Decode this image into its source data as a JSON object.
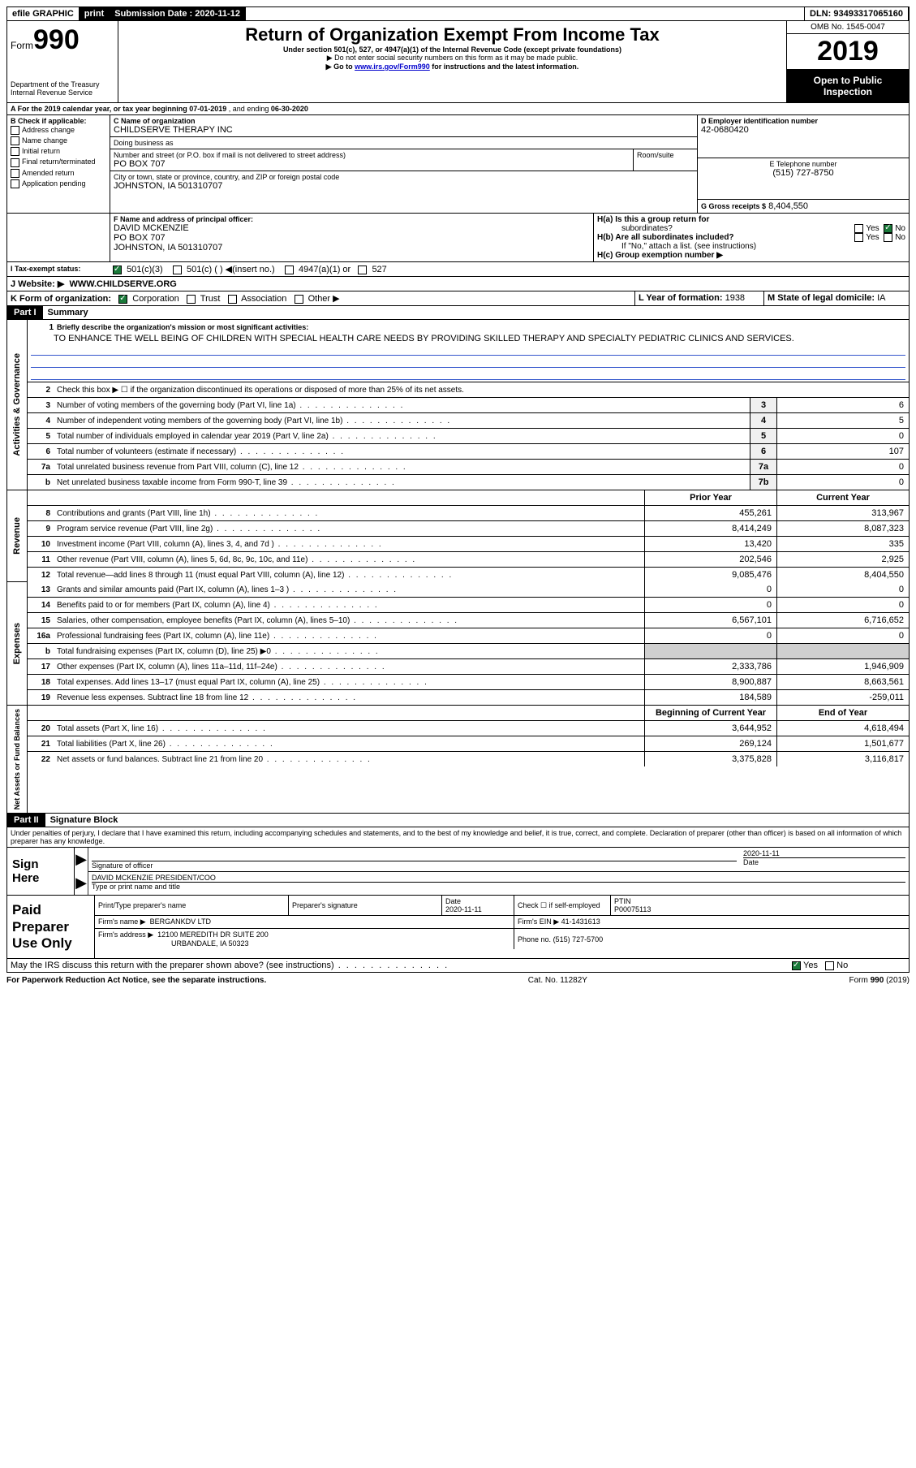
{
  "topbar": {
    "efile": "efile GRAPHIC",
    "print": "print",
    "sub_label": "Submission Date :",
    "sub_date": "2020-11-12",
    "dln_label": "DLN:",
    "dln": "93493317065160"
  },
  "header": {
    "form_word": "Form",
    "form_num": "990",
    "dept": "Department of the Treasury",
    "irs": "Internal Revenue Service",
    "title": "Return of Organization Exempt From Income Tax",
    "subtitle": "Under section 501(c), 527, or 4947(a)(1) of the Internal Revenue Code (except private foundations)",
    "note1": "Do not enter social security numbers on this form as it may be made public.",
    "note2_pre": "Go to ",
    "note2_link": "www.irs.gov/Form990",
    "note2_post": " for instructions and the latest information.",
    "omb": "OMB No. 1545-0047",
    "year": "2019",
    "open": "Open to Public Inspection"
  },
  "periodA": {
    "pre": "A For the 2019 calendar year, or tax year beginning ",
    "begin": "07-01-2019",
    "mid": " , and ending ",
    "end": "06-30-2020"
  },
  "boxB": {
    "title": "B Check if applicable:",
    "items": [
      "Address change",
      "Name change",
      "Initial return",
      "Final return/terminated",
      "Amended return",
      "Application pending"
    ]
  },
  "boxC": {
    "label": "C Name of organization",
    "org": "CHILDSERVE THERAPY INC",
    "dba_label": "Doing business as",
    "dba": "",
    "addr_label": "Number and street (or P.O. box if mail is not delivered to street address)",
    "room_label": "Room/suite",
    "addr": "PO BOX 707",
    "city_label": "City or town, state or province, country, and ZIP or foreign postal code",
    "city": "JOHNSTON, IA  501310707"
  },
  "boxD": {
    "label": "D Employer identification number",
    "ein": "42-0680420"
  },
  "boxE": {
    "label": "E Telephone number",
    "phone": "(515) 727-8750"
  },
  "boxG": {
    "label": "G Gross receipts $",
    "val": "8,404,550"
  },
  "boxF": {
    "label": "F Name and address of principal officer:",
    "name": "DAVID MCKENZIE",
    "addr": "PO BOX 707",
    "city": "JOHNSTON, IA  501310707"
  },
  "boxH": {
    "a": "H(a)  Is this a group return for",
    "a2": "subordinates?",
    "b": "H(b)  Are all subordinates included?",
    "b2": "If \"No,\" attach a list. (see instructions)",
    "c": "H(c)  Group exemption number ▶",
    "yes": "Yes",
    "no": "No"
  },
  "boxI": {
    "label": "I   Tax-exempt status:",
    "o1": "501(c)(3)",
    "o2": "501(c) (   ) ◀(insert no.)",
    "o3": "4947(a)(1) or",
    "o4": "527"
  },
  "boxJ": {
    "label": "J   Website: ▶",
    "val": "WWW.CHILDSERVE.ORG"
  },
  "boxK": {
    "label": "K Form of organization:",
    "o1": "Corporation",
    "o2": "Trust",
    "o3": "Association",
    "o4": "Other ▶"
  },
  "boxL": {
    "label": "L Year of formation:",
    "val": "1938"
  },
  "boxM": {
    "label": "M State of legal domicile:",
    "val": "IA"
  },
  "part1": {
    "num": "Part I",
    "title": "Summary"
  },
  "summary": {
    "l1_label": "Briefly describe the organization's mission or most significant activities:",
    "l1_text": "TO ENHANCE THE WELL BEING OF CHILDREN WITH SPECIAL HEALTH CARE NEEDS BY PROVIDING SKILLED THERAPY AND SPECIALTY PEDIATRIC CLINICS AND SERVICES.",
    "l2": "Check this box ▶ ☐  if the organization discontinued its operations or disposed of more than 25% of its net assets.",
    "gov_lines": [
      {
        "n": "3",
        "t": "Number of voting members of the governing body (Part VI, line 1a)",
        "b": "3",
        "v": "6"
      },
      {
        "n": "4",
        "t": "Number of independent voting members of the governing body (Part VI, line 1b)",
        "b": "4",
        "v": "5"
      },
      {
        "n": "5",
        "t": "Total number of individuals employed in calendar year 2019 (Part V, line 2a)",
        "b": "5",
        "v": "0"
      },
      {
        "n": "6",
        "t": "Total number of volunteers (estimate if necessary)",
        "b": "6",
        "v": "107"
      },
      {
        "n": "7a",
        "t": "Total unrelated business revenue from Part VIII, column (C), line 12",
        "b": "7a",
        "v": "0"
      },
      {
        "n": "b",
        "t": "Net unrelated business taxable income from Form 990-T, line 39",
        "b": "7b",
        "v": "0"
      }
    ],
    "col_prior": "Prior Year",
    "col_curr": "Current Year",
    "rev_lines": [
      {
        "n": "8",
        "t": "Contributions and grants (Part VIII, line 1h)",
        "p": "455,261",
        "c": "313,967"
      },
      {
        "n": "9",
        "t": "Program service revenue (Part VIII, line 2g)",
        "p": "8,414,249",
        "c": "8,087,323"
      },
      {
        "n": "10",
        "t": "Investment income (Part VIII, column (A), lines 3, 4, and 7d )",
        "p": "13,420",
        "c": "335"
      },
      {
        "n": "11",
        "t": "Other revenue (Part VIII, column (A), lines 5, 6d, 8c, 9c, 10c, and 11e)",
        "p": "202,546",
        "c": "2,925"
      },
      {
        "n": "12",
        "t": "Total revenue—add lines 8 through 11 (must equal Part VIII, column (A), line 12)",
        "p": "9,085,476",
        "c": "8,404,550"
      }
    ],
    "exp_lines": [
      {
        "n": "13",
        "t": "Grants and similar amounts paid (Part IX, column (A), lines 1–3 )",
        "p": "0",
        "c": "0"
      },
      {
        "n": "14",
        "t": "Benefits paid to or for members (Part IX, column (A), line 4)",
        "p": "0",
        "c": "0"
      },
      {
        "n": "15",
        "t": "Salaries, other compensation, employee benefits (Part IX, column (A), lines 5–10)",
        "p": "6,567,101",
        "c": "6,716,652"
      },
      {
        "n": "16a",
        "t": "Professional fundraising fees (Part IX, column (A), line 11e)",
        "p": "0",
        "c": "0"
      },
      {
        "n": "b",
        "t": "Total fundraising expenses (Part IX, column (D), line 25) ▶0",
        "p": "",
        "c": "",
        "gray": true
      },
      {
        "n": "17",
        "t": "Other expenses (Part IX, column (A), lines 11a–11d, 11f–24e)",
        "p": "2,333,786",
        "c": "1,946,909"
      },
      {
        "n": "18",
        "t": "Total expenses. Add lines 13–17 (must equal Part IX, column (A), line 25)",
        "p": "8,900,887",
        "c": "8,663,561"
      },
      {
        "n": "19",
        "t": "Revenue less expenses. Subtract line 18 from line 12",
        "p": "184,589",
        "c": "-259,011"
      }
    ],
    "col_begin": "Beginning of Current Year",
    "col_end": "End of Year",
    "net_lines": [
      {
        "n": "20",
        "t": "Total assets (Part X, line 16)",
        "p": "3,644,952",
        "c": "4,618,494"
      },
      {
        "n": "21",
        "t": "Total liabilities (Part X, line 26)",
        "p": "269,124",
        "c": "1,501,677"
      },
      {
        "n": "22",
        "t": "Net assets or fund balances. Subtract line 21 from line 20",
        "p": "3,375,828",
        "c": "3,116,817"
      }
    ],
    "vlabels": {
      "gov": "Activities & Governance",
      "rev": "Revenue",
      "exp": "Expenses",
      "net": "Net Assets or Fund Balances"
    }
  },
  "part2": {
    "num": "Part II",
    "title": "Signature Block",
    "decl": "Under penalties of perjury, I declare that I have examined this return, including accompanying schedules and statements, and to the best of my knowledge and belief, it is true, correct, and complete. Declaration of preparer (other than officer) is based on all information of which preparer has any knowledge."
  },
  "sign": {
    "here": "Sign Here",
    "sig_label": "Signature of officer",
    "date_label": "Date",
    "date": "2020-11-11",
    "name": "DAVID MCKENZIE  PRESIDENT/COO",
    "name_label": "Type or print name and title"
  },
  "prep": {
    "title": "Paid Preparer Use Only",
    "h1": "Print/Type preparer's name",
    "h2": "Preparer's signature",
    "h3": "Date",
    "h3v": "2020-11-11",
    "h4": "Check ☐ if self-employed",
    "h5": "PTIN",
    "h5v": "P00075113",
    "firm_label": "Firm's name    ▶",
    "firm": "BERGANKDV LTD",
    "ein_label": "Firm's EIN ▶",
    "ein": "41-1431613",
    "addr_label": "Firm's address ▶",
    "addr1": "12100 MEREDITH DR SUITE 200",
    "addr2": "URBANDALE, IA  50323",
    "phone_label": "Phone no.",
    "phone": "(515) 727-5700"
  },
  "discuss": {
    "q": "May the IRS discuss this return with the preparer shown above? (see instructions)",
    "yes": "Yes",
    "no": "No"
  },
  "footer": {
    "l": "For Paperwork Reduction Act Notice, see the separate instructions.",
    "c": "Cat. No. 11282Y",
    "r": "Form 990 (2019)"
  }
}
